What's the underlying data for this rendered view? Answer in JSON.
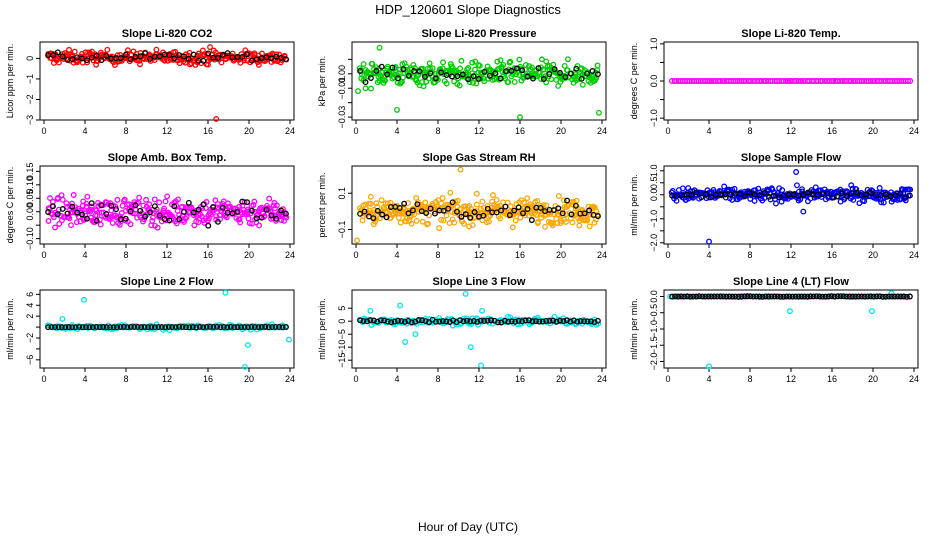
{
  "page_title": "HDP_120601  Slope Diagnostics",
  "x_axis_label": "Hour of Day (UTC)",
  "colors": {
    "black": "#000000",
    "red": "#ff0000",
    "green": "#00cc00",
    "magenta": "#ff00ff",
    "orange": "#ffa500",
    "blue": "#0000ff",
    "cyan": "#00e5ee"
  },
  "chart_data": [
    {
      "type": "scatter",
      "title": "Slope Li-820 CO2",
      "ylabel": "Licor ppm per min.",
      "xlim": [
        0,
        24
      ],
      "ylim": [
        -3,
        0.8
      ],
      "xticks": [
        "0",
        "4",
        "8",
        "12",
        "16",
        "20",
        "24"
      ],
      "yticks": [
        -3,
        -2,
        -1,
        0
      ],
      "ytick_labels": [
        "−3",
        "−2",
        "−1",
        "0"
      ],
      "color": "#ff0000",
      "center": 0.05,
      "spread": 0.32,
      "n_color": 260,
      "n_black": 50,
      "black_spread": 0.2,
      "outliers": [
        [
          16.8,
          -2.95
        ],
        [
          16.2,
          0.55
        ]
      ]
    },
    {
      "type": "scatter",
      "title": "Slope Li-820 Pressure",
      "ylabel": "kPa per min.",
      "xlim": [
        0,
        24
      ],
      "ylim": [
        -0.032,
        0.022
      ],
      "xticks": [
        "0",
        "4",
        "8",
        "12",
        "16",
        "20",
        "24"
      ],
      "yticks": [
        -0.03,
        -0.02,
        -0.01,
        0.0,
        0.01
      ],
      "ytick_labels": [
        "−0.03",
        "",
        "−0.01",
        "0.00",
        ""
      ],
      "color": "#00cc00",
      "center": 0.0,
      "spread": 0.008,
      "n_color": 320,
      "n_black": 45,
      "black_spread": 0.005,
      "outliers": [
        [
          2.3,
          0.018
        ],
        [
          4.0,
          -0.025
        ],
        [
          16.0,
          -0.03
        ],
        [
          23.7,
          -0.027
        ],
        [
          0.2,
          -0.012
        ]
      ]
    },
    {
      "type": "scatter",
      "title": "Slope Li-820 Temp.",
      "ylabel": "degrees C per min.",
      "xlim": [
        0,
        24
      ],
      "ylim": [
        -1.05,
        1.05
      ],
      "xticks": [
        "0",
        "4",
        "8",
        "12",
        "16",
        "20",
        "24"
      ],
      "yticks": [
        -1,
        -0.5,
        0,
        0.5,
        1
      ],
      "ytick_labels": [
        "−1.0",
        "",
        "0.0",
        "",
        "1.0"
      ],
      "color": "#ff00ff",
      "center": 0.0,
      "spread": 0.0,
      "n_color": 110,
      "n_black": 0,
      "black_spread": 0.0,
      "outliers": []
    },
    {
      "type": "scatter",
      "title": "Slope Amb. Box Temp.",
      "ylabel": "degrees C per min.",
      "xlim": [
        0,
        24
      ],
      "ylim": [
        -0.12,
        0.17
      ],
      "xticks": [
        "0",
        "4",
        "8",
        "12",
        "16",
        "20",
        "24"
      ],
      "yticks": [
        -0.1,
        -0.05,
        0,
        0.05,
        0.1,
        0.15
      ],
      "ytick_labels": [
        "−0.10",
        "",
        "0.00",
        "0.05",
        "0.10",
        "0.15"
      ],
      "color": "#ff00ff",
      "center": 0.0,
      "spread": 0.05,
      "n_color": 320,
      "n_black": 50,
      "black_spread": 0.04,
      "outliers": []
    },
    {
      "type": "scatter",
      "title": "Slope Gas Stream RH",
      "ylabel": "percent per min.",
      "xlim": [
        0,
        24
      ],
      "ylim": [
        -0.18,
        0.25
      ],
      "xticks": [
        "0",
        "4",
        "8",
        "12",
        "16",
        "20",
        "24"
      ],
      "yticks": [
        -0.1,
        0.1
      ],
      "ytick_labels": [
        "−0.1",
        "0.1"
      ],
      "color": "#ffa500",
      "center": 0.0,
      "spread": 0.07,
      "n_color": 340,
      "n_black": 55,
      "black_spread": 0.05,
      "outliers": [
        [
          10.2,
          0.23
        ],
        [
          0.1,
          -0.16
        ]
      ]
    },
    {
      "type": "scatter",
      "title": "Slope Sample Flow",
      "ylabel": "ml/min per min.",
      "xlim": [
        0,
        24
      ],
      "ylim": [
        -2.05,
        1.2
      ],
      "xticks": [
        "0",
        "4",
        "8",
        "12",
        "16",
        "20",
        "24"
      ],
      "yticks": [
        -2,
        -1.5,
        -1,
        -0.5,
        0,
        0.5,
        1
      ],
      "ytick_labels": [
        "−2.0",
        "",
        "−1.0",
        "",
        "0.0",
        "0.5",
        "1.0"
      ],
      "color": "#0000ff",
      "center": 0.0,
      "spread": 0.28,
      "n_color": 300,
      "n_black": 50,
      "black_spread": 0.12,
      "outliers": [
        [
          4.0,
          -1.95
        ],
        [
          12.5,
          0.95
        ],
        [
          13.2,
          -0.7
        ]
      ]
    },
    {
      "type": "scatter",
      "title": "Slope Line 2 Flow",
      "ylabel": "ml/min per min.",
      "xlim": [
        0,
        24
      ],
      "ylim": [
        -7.5,
        6.8
      ],
      "xticks": [
        "0",
        "4",
        "8",
        "12",
        "16",
        "20",
        "24"
      ],
      "yticks": [
        -6,
        -4,
        -2,
        0,
        2,
        4,
        6
      ],
      "ytick_labels": [
        "−6",
        "",
        "−2",
        "",
        "2",
        "4",
        "6"
      ],
      "color": "#00e5ee",
      "center": 0.0,
      "spread": 0.45,
      "n_color": 150,
      "n_black": 70,
      "black_spread": 0.05,
      "outliers": [
        [
          3.9,
          5.0
        ],
        [
          17.7,
          6.3
        ],
        [
          19.6,
          -7.3
        ],
        [
          19.9,
          -3.3
        ],
        [
          23.9,
          -2.3
        ],
        [
          1.8,
          1.5
        ]
      ]
    },
    {
      "type": "scatter",
      "title": "Slope Line 3 Flow",
      "ylabel": "ml/min per min.",
      "xlim": [
        0,
        24
      ],
      "ylim": [
        -18,
        12
      ],
      "xticks": [
        "0",
        "4",
        "8",
        "12",
        "16",
        "20",
        "24"
      ],
      "yticks": [
        -15,
        -10,
        -5,
        0,
        5
      ],
      "ytick_labels": [
        "−15",
        "−10",
        "−5",
        "0",
        "5"
      ],
      "color": "#00e5ee",
      "center": 0.0,
      "spread": 1.3,
      "n_color": 170,
      "n_black": 70,
      "black_spread": 0.5,
      "outliers": [
        [
          12.2,
          -17
        ],
        [
          11.2,
          -10
        ],
        [
          10.7,
          10.5
        ],
        [
          4.3,
          6
        ],
        [
          1.4,
          4
        ],
        [
          4.8,
          -8
        ],
        [
          5.8,
          -5
        ],
        [
          12.3,
          4
        ]
      ]
    },
    {
      "type": "scatter",
      "title": "Slope Line 4 (LT) Flow",
      "ylabel": "ml/min per min.",
      "xlim": [
        0,
        24
      ],
      "ylim": [
        -2.2,
        0.2
      ],
      "xticks": [
        "0",
        "4",
        "8",
        "12",
        "16",
        "20",
        "24"
      ],
      "yticks": [
        -2,
        -1.5,
        -1,
        -0.5,
        0
      ],
      "ytick_labels": [
        "−2.0",
        "−1.5",
        "−1.0",
        "−0.5",
        "0.0"
      ],
      "color": "#00e5ee",
      "center": 0.0,
      "spread": 0.02,
      "n_color": 80,
      "n_black": 80,
      "black_spread": 0.01,
      "outliers": [
        [
          4.0,
          -2.15
        ],
        [
          11.9,
          -0.45
        ],
        [
          19.9,
          -0.45
        ],
        [
          21.8,
          0.1
        ],
        [
          0.2,
          0.0
        ]
      ]
    }
  ]
}
